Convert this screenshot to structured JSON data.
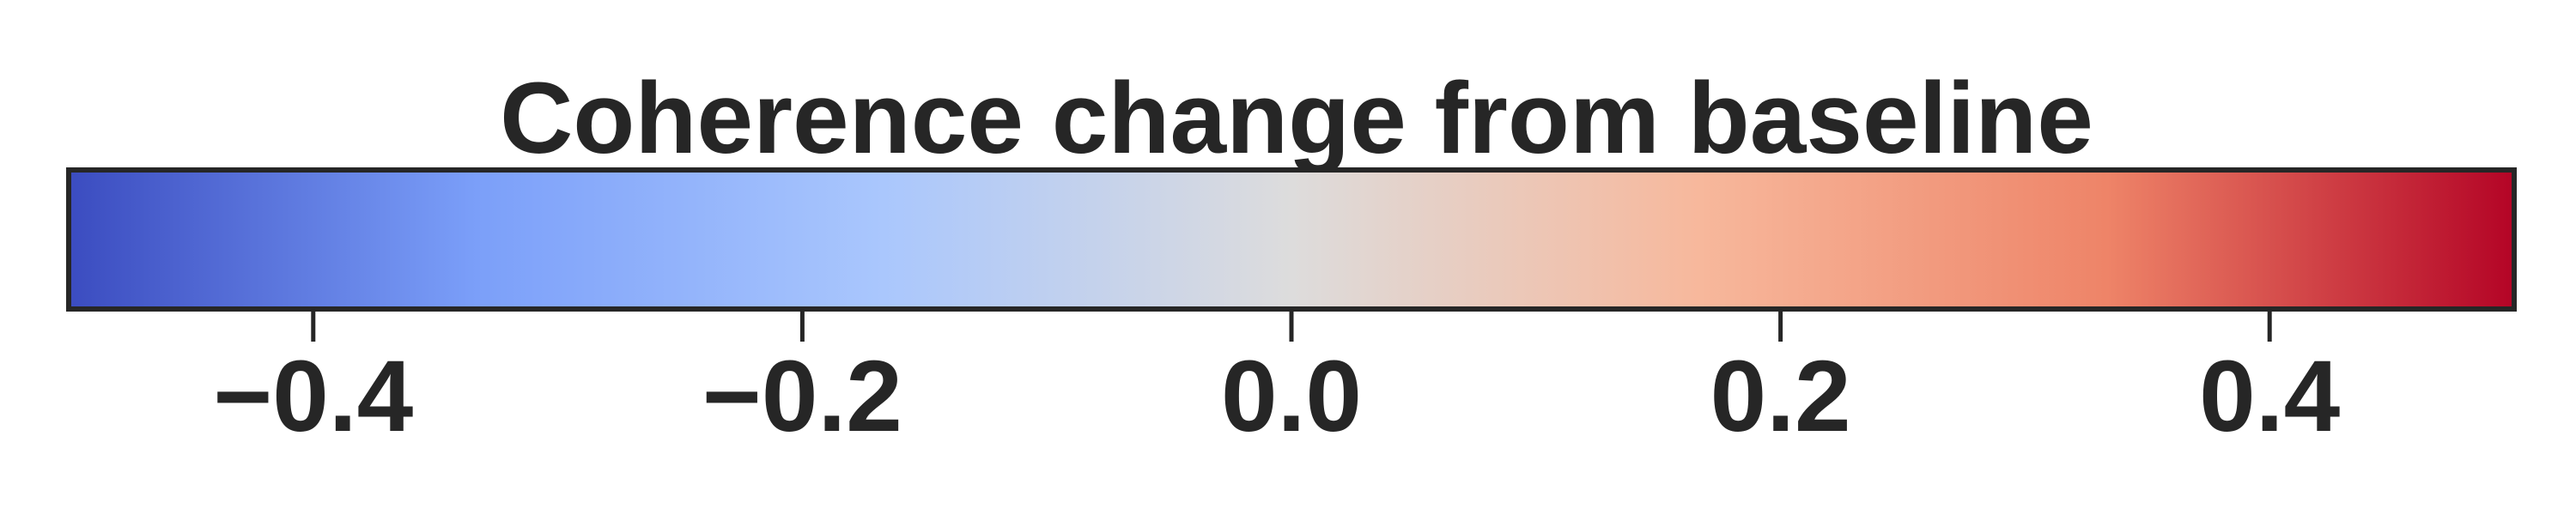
{
  "chart_data": {
    "type": "colorbar",
    "orientation": "horizontal",
    "title": "Coherence change from baseline",
    "colormap": "coolwarm",
    "vmin": -0.5,
    "vmax": 0.5,
    "ticks": [
      -0.4,
      -0.2,
      0.0,
      0.2,
      0.4
    ],
    "tick_labels": [
      "−0.4",
      "−0.2",
      "0.0",
      "0.2",
      "0.4"
    ],
    "colors": {
      "stops": [
        "#3b4cc0",
        "#7b9ff9",
        "#aac7fd",
        "#dddcdc",
        "#f7b89c",
        "#ee8468",
        "#b40426"
      ],
      "text": "#262626"
    }
  }
}
